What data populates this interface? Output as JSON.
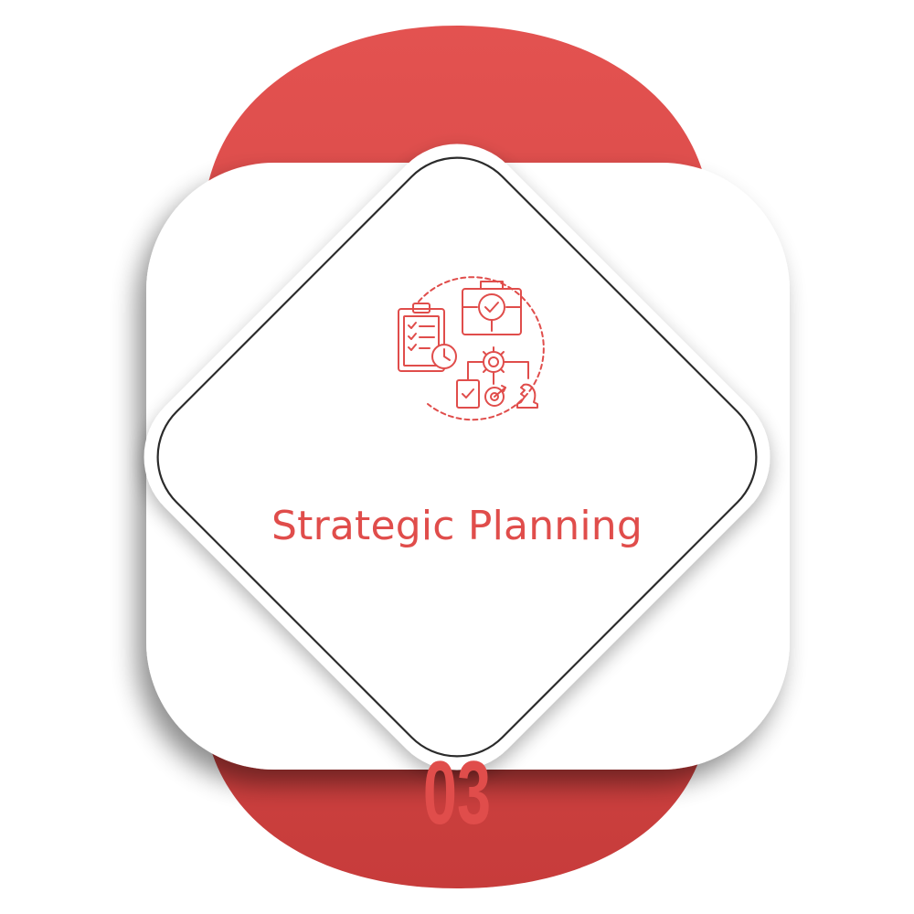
{
  "card": {
    "title": "Strategic Planning",
    "number": "03"
  },
  "icon": {
    "name": "strategic-planning-icon",
    "parts": [
      "clipboard-checklist-icon",
      "clock-icon",
      "briefcase-icon",
      "magnifier-check-icon",
      "gear-icon",
      "document-check-icon",
      "target-icon",
      "chess-knight-icon"
    ]
  },
  "colors": {
    "accent": "#e04d4b",
    "accent_dark": "#c43a3a",
    "card": "#ffffff",
    "outline": "#2b2b2b"
  }
}
